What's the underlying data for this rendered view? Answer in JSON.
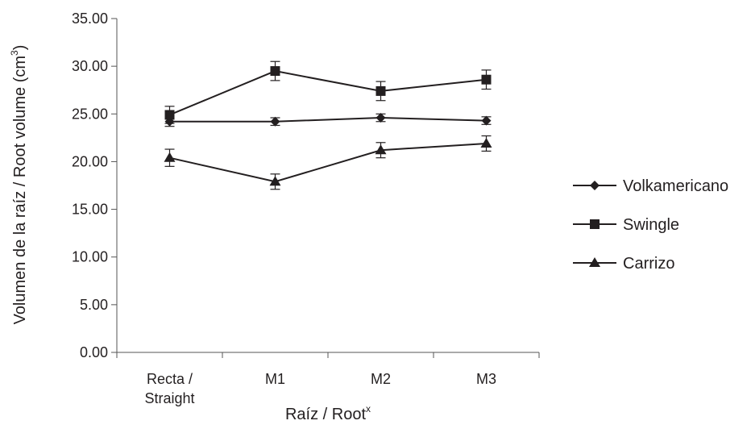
{
  "chart_data": {
    "type": "line",
    "title": "",
    "xlabel": "Raíz / Root",
    "xlabel_superscript": "x",
    "ylabel": "Volumen de la raíz / Root volume (cm",
    "ylabel_superscript": "3",
    "ylabel_suffix": ")",
    "categories": [
      [
        "Recta /",
        "Straight"
      ],
      [
        "M1"
      ],
      [
        "M2"
      ],
      [
        "M3"
      ]
    ],
    "ylim": [
      0,
      35
    ],
    "yticks": [
      "0.00",
      "5.00",
      "10.00",
      "15.00",
      "20.00",
      "25.00",
      "30.00",
      "35.00"
    ],
    "ytick_values": [
      0,
      5,
      10,
      15,
      20,
      25,
      30,
      35
    ],
    "grid": false,
    "legend_position": "right",
    "series": [
      {
        "name": "Volkamericano",
        "marker": "diamond",
        "values": [
          24.2,
          24.2,
          24.6,
          24.3
        ],
        "errors": [
          0.5,
          0.4,
          0.4,
          0.4
        ]
      },
      {
        "name": "Swingle",
        "marker": "square",
        "values": [
          24.9,
          29.5,
          27.4,
          28.6
        ],
        "errors": [
          0.9,
          1.0,
          1.0,
          1.0
        ]
      },
      {
        "name": "Carrizo",
        "marker": "triangle",
        "values": [
          20.4,
          17.9,
          21.2,
          21.9
        ],
        "errors": [
          0.9,
          0.8,
          0.8,
          0.8
        ]
      }
    ],
    "line_color": "#231f20"
  }
}
